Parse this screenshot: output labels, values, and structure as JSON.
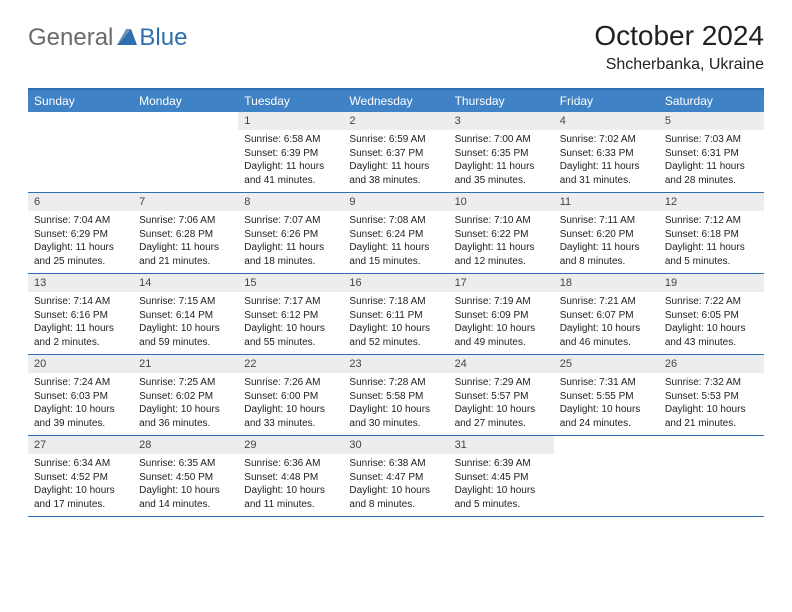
{
  "brand": {
    "word1": "General",
    "word2": "Blue",
    "word1_color": "#6a6a6a",
    "word2_color": "#2f6fb0",
    "triangle_color": "#2f6fb0"
  },
  "title": "October 2024",
  "location": "Shcherbanka, Ukraine",
  "colors": {
    "header_bg": "#3f82c5",
    "header_text": "#ffffff",
    "daynum_bg": "#ecedee",
    "border": "#2f6fb0",
    "text": "#222222",
    "background": "#ffffff"
  },
  "day_names": [
    "Sunday",
    "Monday",
    "Tuesday",
    "Wednesday",
    "Thursday",
    "Friday",
    "Saturday"
  ],
  "weeks": [
    [
      {
        "n": "",
        "t": ""
      },
      {
        "n": "",
        "t": ""
      },
      {
        "n": "1",
        "t": "Sunrise: 6:58 AM\nSunset: 6:39 PM\nDaylight: 11 hours and 41 minutes."
      },
      {
        "n": "2",
        "t": "Sunrise: 6:59 AM\nSunset: 6:37 PM\nDaylight: 11 hours and 38 minutes."
      },
      {
        "n": "3",
        "t": "Sunrise: 7:00 AM\nSunset: 6:35 PM\nDaylight: 11 hours and 35 minutes."
      },
      {
        "n": "4",
        "t": "Sunrise: 7:02 AM\nSunset: 6:33 PM\nDaylight: 11 hours and 31 minutes."
      },
      {
        "n": "5",
        "t": "Sunrise: 7:03 AM\nSunset: 6:31 PM\nDaylight: 11 hours and 28 minutes."
      }
    ],
    [
      {
        "n": "6",
        "t": "Sunrise: 7:04 AM\nSunset: 6:29 PM\nDaylight: 11 hours and 25 minutes."
      },
      {
        "n": "7",
        "t": "Sunrise: 7:06 AM\nSunset: 6:28 PM\nDaylight: 11 hours and 21 minutes."
      },
      {
        "n": "8",
        "t": "Sunrise: 7:07 AM\nSunset: 6:26 PM\nDaylight: 11 hours and 18 minutes."
      },
      {
        "n": "9",
        "t": "Sunrise: 7:08 AM\nSunset: 6:24 PM\nDaylight: 11 hours and 15 minutes."
      },
      {
        "n": "10",
        "t": "Sunrise: 7:10 AM\nSunset: 6:22 PM\nDaylight: 11 hours and 12 minutes."
      },
      {
        "n": "11",
        "t": "Sunrise: 7:11 AM\nSunset: 6:20 PM\nDaylight: 11 hours and 8 minutes."
      },
      {
        "n": "12",
        "t": "Sunrise: 7:12 AM\nSunset: 6:18 PM\nDaylight: 11 hours and 5 minutes."
      }
    ],
    [
      {
        "n": "13",
        "t": "Sunrise: 7:14 AM\nSunset: 6:16 PM\nDaylight: 11 hours and 2 minutes."
      },
      {
        "n": "14",
        "t": "Sunrise: 7:15 AM\nSunset: 6:14 PM\nDaylight: 10 hours and 59 minutes."
      },
      {
        "n": "15",
        "t": "Sunrise: 7:17 AM\nSunset: 6:12 PM\nDaylight: 10 hours and 55 minutes."
      },
      {
        "n": "16",
        "t": "Sunrise: 7:18 AM\nSunset: 6:11 PM\nDaylight: 10 hours and 52 minutes."
      },
      {
        "n": "17",
        "t": "Sunrise: 7:19 AM\nSunset: 6:09 PM\nDaylight: 10 hours and 49 minutes."
      },
      {
        "n": "18",
        "t": "Sunrise: 7:21 AM\nSunset: 6:07 PM\nDaylight: 10 hours and 46 minutes."
      },
      {
        "n": "19",
        "t": "Sunrise: 7:22 AM\nSunset: 6:05 PM\nDaylight: 10 hours and 43 minutes."
      }
    ],
    [
      {
        "n": "20",
        "t": "Sunrise: 7:24 AM\nSunset: 6:03 PM\nDaylight: 10 hours and 39 minutes."
      },
      {
        "n": "21",
        "t": "Sunrise: 7:25 AM\nSunset: 6:02 PM\nDaylight: 10 hours and 36 minutes."
      },
      {
        "n": "22",
        "t": "Sunrise: 7:26 AM\nSunset: 6:00 PM\nDaylight: 10 hours and 33 minutes."
      },
      {
        "n": "23",
        "t": "Sunrise: 7:28 AM\nSunset: 5:58 PM\nDaylight: 10 hours and 30 minutes."
      },
      {
        "n": "24",
        "t": "Sunrise: 7:29 AM\nSunset: 5:57 PM\nDaylight: 10 hours and 27 minutes."
      },
      {
        "n": "25",
        "t": "Sunrise: 7:31 AM\nSunset: 5:55 PM\nDaylight: 10 hours and 24 minutes."
      },
      {
        "n": "26",
        "t": "Sunrise: 7:32 AM\nSunset: 5:53 PM\nDaylight: 10 hours and 21 minutes."
      }
    ],
    [
      {
        "n": "27",
        "t": "Sunrise: 6:34 AM\nSunset: 4:52 PM\nDaylight: 10 hours and 17 minutes."
      },
      {
        "n": "28",
        "t": "Sunrise: 6:35 AM\nSunset: 4:50 PM\nDaylight: 10 hours and 14 minutes."
      },
      {
        "n": "29",
        "t": "Sunrise: 6:36 AM\nSunset: 4:48 PM\nDaylight: 10 hours and 11 minutes."
      },
      {
        "n": "30",
        "t": "Sunrise: 6:38 AM\nSunset: 4:47 PM\nDaylight: 10 hours and 8 minutes."
      },
      {
        "n": "31",
        "t": "Sunrise: 6:39 AM\nSunset: 4:45 PM\nDaylight: 10 hours and 5 minutes."
      },
      {
        "n": "",
        "t": ""
      },
      {
        "n": "",
        "t": ""
      }
    ]
  ]
}
